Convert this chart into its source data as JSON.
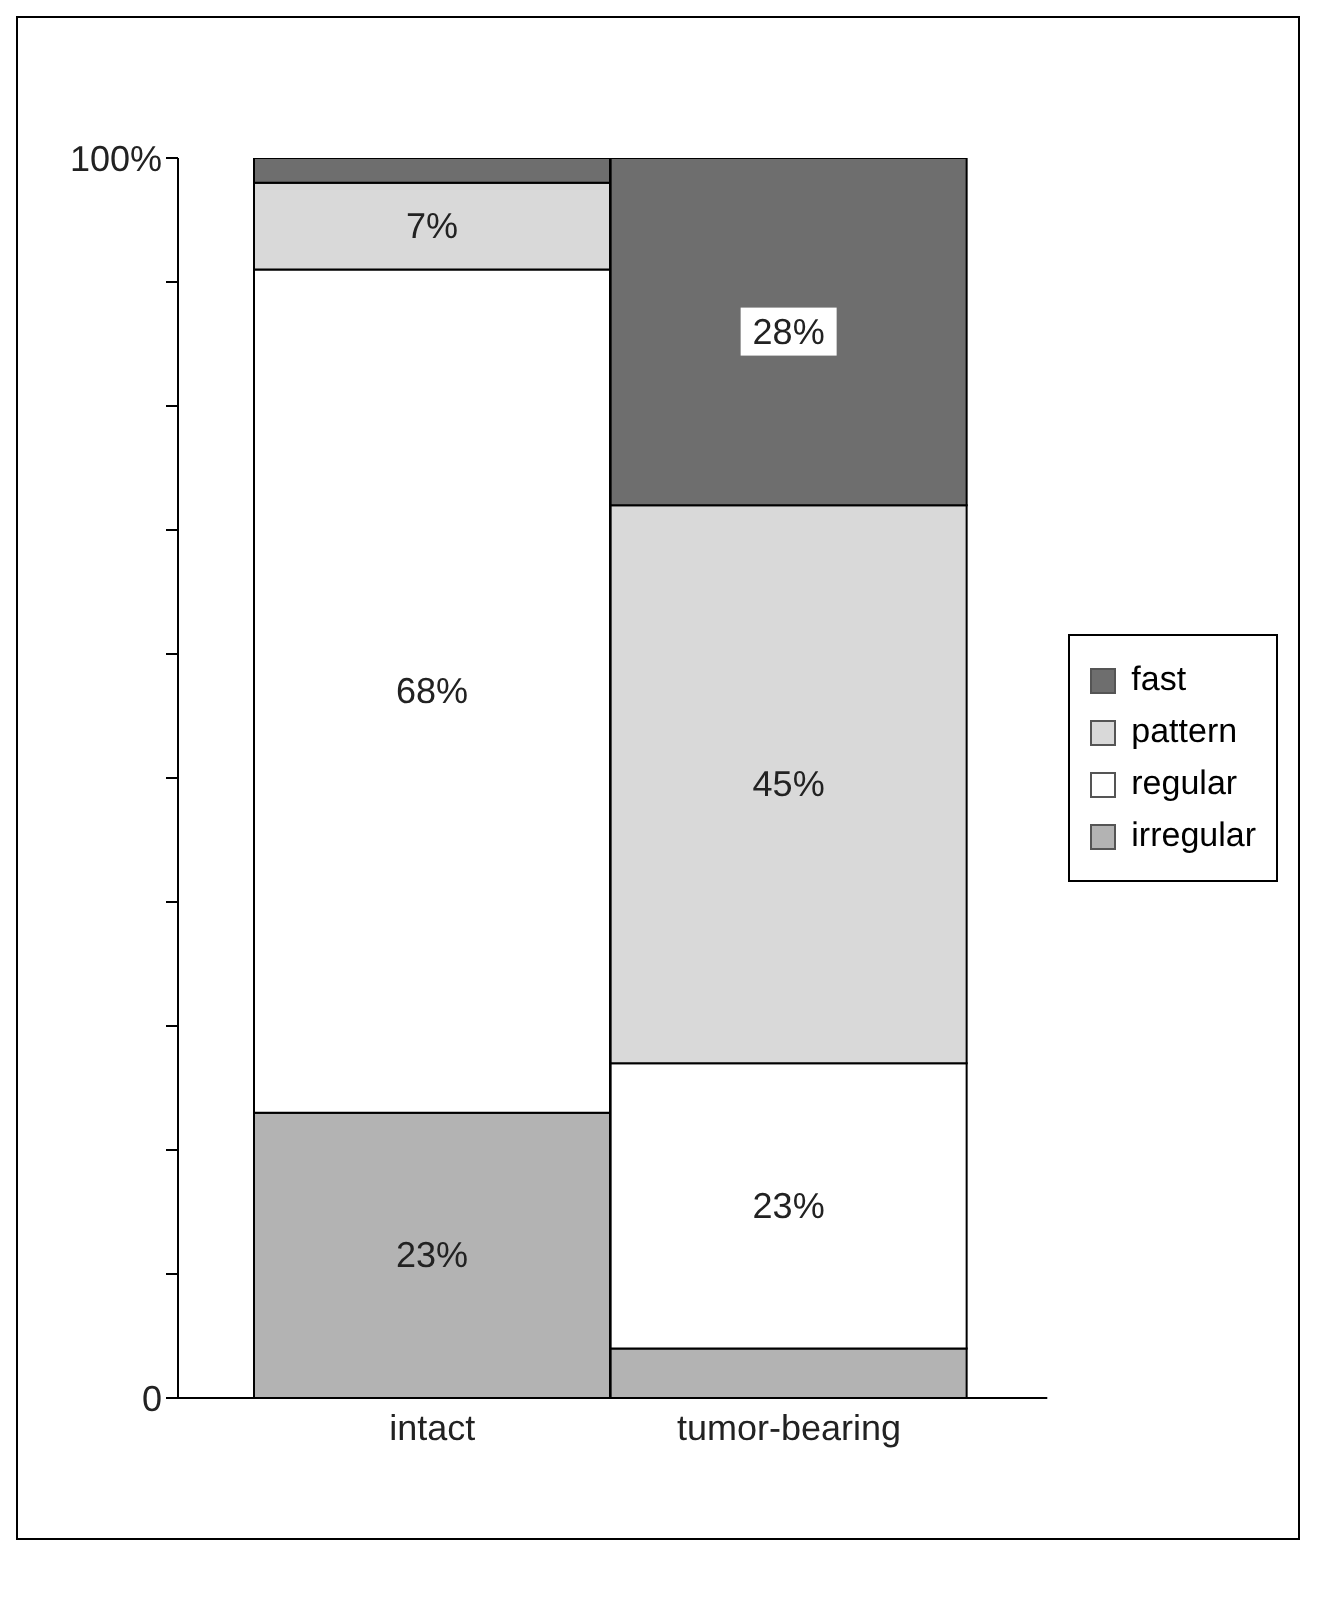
{
  "chart_data": {
    "type": "bar",
    "stacked": true,
    "categories": [
      "intact",
      "tumor-bearing"
    ],
    "series": [
      {
        "name": "irregular",
        "color": "#b3b3b3",
        "values": [
          23,
          4
        ],
        "value_labels": [
          "23%",
          null
        ]
      },
      {
        "name": "regular",
        "color": "#ffffff",
        "values": [
          68,
          23
        ],
        "value_labels": [
          "68%",
          "23%"
        ]
      },
      {
        "name": "pattern",
        "color": "#d9d9d9",
        "values": [
          7,
          45
        ],
        "value_labels": [
          "7%",
          "45%"
        ]
      },
      {
        "name": "fast",
        "color": "#6e6e6e",
        "values": [
          2,
          28
        ],
        "value_labels": [
          null,
          "28%"
        ]
      }
    ],
    "ylim": [
      0,
      100
    ],
    "yticks": [
      {
        "value": 0,
        "label": "0"
      },
      {
        "value": 10,
        "label": null
      },
      {
        "value": 20,
        "label": null
      },
      {
        "value": 30,
        "label": null
      },
      {
        "value": 40,
        "label": null
      },
      {
        "value": 50,
        "label": null
      },
      {
        "value": 60,
        "label": null
      },
      {
        "value": 70,
        "label": null
      },
      {
        "value": 80,
        "label": null
      },
      {
        "value": 90,
        "label": null
      },
      {
        "value": 100,
        "label": "100%"
      }
    ],
    "grid": false,
    "legend": "right"
  }
}
